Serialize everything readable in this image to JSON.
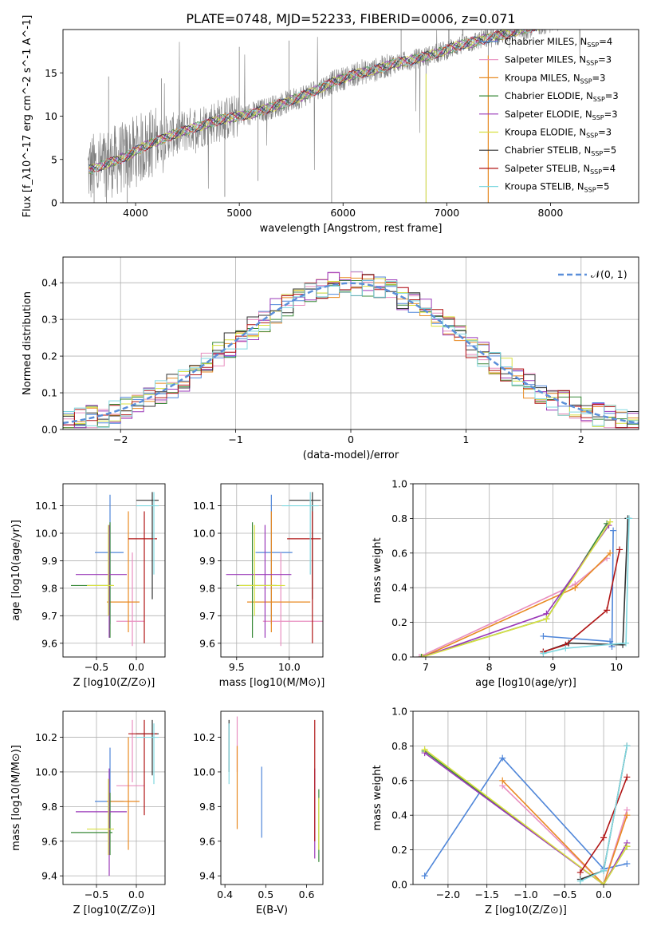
{
  "figure_title": "PLATE=0748, MJD=52233, FIBERID=0006, z=0.071",
  "colors": {
    "Chabrier MILES": "#4f86d9",
    "Salpeter MILES": "#e88fc0",
    "Kroupa MILES": "#e88a22",
    "Chabrier ELODIE": "#3a8a3a",
    "Salpeter ELODIE": "#9a38b8",
    "Kroupa ELODIE": "#d8e040",
    "Chabrier STELIB": "#333333",
    "Salpeter STELIB": "#b01515",
    "Kroupa STELIB": "#80d8e0",
    "data": "#808080",
    "gaussian": "#5b8fd9"
  },
  "chart_data": [
    {
      "id": "spectrum",
      "type": "line",
      "xlabel": "wavelength [Angstrom, rest frame]",
      "ylabel": "Flux [f_λ10^-17 erg cm^-2 s^-1 A^-1]",
      "xlim": [
        3300,
        8850
      ],
      "ylim": [
        0,
        20
      ],
      "xticks": [
        4000,
        5000,
        6000,
        7000,
        8000
      ],
      "yticks": [
        0,
        5,
        10,
        15
      ],
      "legend": "right",
      "legend_entries": [
        {
          "model": "Chabrier MILES",
          "nssp": "4"
        },
        {
          "model": "Salpeter MILES",
          "nssp": "3"
        },
        {
          "model": "Kroupa MILES",
          "nssp": "3"
        },
        {
          "model": "Chabrier ELODIE",
          "nssp": "3"
        },
        {
          "model": "Salpeter ELODIE",
          "nssp": "3"
        },
        {
          "model": "Kroupa ELODIE",
          "nssp": "3"
        },
        {
          "model": "Chabrier STELIB",
          "nssp": "5"
        },
        {
          "model": "Salpeter STELIB",
          "nssp": "4"
        },
        {
          "model": "Kroupa STELIB",
          "nssp": "5"
        }
      ],
      "continuum": {
        "x": [
          3550,
          3700,
          3900,
          4100,
          4300,
          4500,
          4700,
          4900,
          5100,
          5300,
          5500,
          5700,
          5900,
          6100,
          6300,
          6500,
          6700,
          6900,
          7100,
          7300,
          7500
        ],
        "y": [
          3.8,
          4.4,
          5.3,
          6.6,
          7.6,
          8.4,
          9.2,
          9.8,
          10.2,
          11.0,
          11.8,
          12.8,
          13.9,
          14.8,
          15.3,
          16.1,
          16.6,
          17.2,
          18.1,
          18.7,
          19.3
        ]
      }
    },
    {
      "id": "residuals",
      "type": "step",
      "xlabel": "(data-model)/error",
      "ylabel": "Normed distribution",
      "xlim": [
        -2.5,
        2.5
      ],
      "ylim": [
        0,
        0.47
      ],
      "xticks": [
        -2,
        -1,
        0,
        1,
        2
      ],
      "yticks": [
        0.0,
        0.1,
        0.2,
        0.3,
        0.4
      ],
      "legend_label": "𝒩(0, 1)",
      "legend": "top-right",
      "bin_width": 0.1,
      "bins_start": -2.5,
      "reference_curve": "standard normal"
    },
    {
      "id": "age-vs-Z",
      "type": "errorbar",
      "xlabel": "Z [log10(Z/Z⊙)]",
      "ylabel": "age  [log10(age/yr)]",
      "xlim": [
        -0.92,
        0.36
      ],
      "ylim": [
        9.55,
        10.18
      ],
      "xticks": [
        -0.5,
        0.0
      ],
      "yticks": [
        9.6,
        9.7,
        9.8,
        9.9,
        10.0,
        10.1
      ]
    },
    {
      "id": "age-vs-mass",
      "type": "errorbar",
      "xlabel": "mass [log10(M/M⊙)]",
      "ylabel": "",
      "xlim": [
        9.35,
        10.32
      ],
      "ylim": [
        9.55,
        10.18
      ],
      "xticks": [
        9.5,
        10.0
      ],
      "yticks": [
        9.6,
        9.7,
        9.8,
        9.9,
        10.0,
        10.1
      ]
    },
    {
      "id": "mass-weight-vs-age",
      "type": "line",
      "xlabel": "age  [log10(age/yr)]",
      "ylabel": "mass weight",
      "xlim": [
        6.8,
        10.35
      ],
      "ylim": [
        0,
        1
      ],
      "xticks": [
        7,
        8,
        9,
        10
      ],
      "yticks": [
        0.0,
        0.2,
        0.4,
        0.6,
        0.8,
        1.0
      ]
    },
    {
      "id": "mass-vs-Z",
      "type": "errorbar",
      "xlabel": "Z [log10(Z/Z⊙)]",
      "ylabel": "mass [log10(M/M⊙)]",
      "xlim": [
        -0.92,
        0.36
      ],
      "ylim": [
        9.35,
        10.35
      ],
      "xticks": [
        -0.5,
        0.0
      ],
      "yticks": [
        9.4,
        9.6,
        9.8,
        10.0,
        10.2
      ]
    },
    {
      "id": "mass-vs-ebv",
      "type": "errorbar",
      "xlabel": "E(B-V)",
      "ylabel": "",
      "xlim": [
        0.39,
        0.64
      ],
      "ylim": [
        9.35,
        10.35
      ],
      "xticks": [
        0.4,
        0.5,
        0.6
      ],
      "yticks": [
        9.4,
        9.6,
        9.8,
        10.0,
        10.2
      ]
    },
    {
      "id": "mass-weight-vs-Z",
      "type": "line",
      "xlabel": "Z [log10(Z/Z⊙)]",
      "ylabel": "mass weight",
      "xlim": [
        -2.45,
        0.45
      ],
      "ylim": [
        0,
        1
      ],
      "xticks": [
        -2.0,
        -1.5,
        -1.0,
        -0.5,
        0.0
      ],
      "yticks": [
        0.0,
        0.2,
        0.4,
        0.6,
        0.8,
        1.0
      ]
    }
  ],
  "models": [
    {
      "name": "Chabrier MILES",
      "Z": -0.33,
      "Zlo": -0.52,
      "Zhi": -0.16,
      "age": 9.93,
      "age_lo": 9.67,
      "age_hi": 10.14,
      "mass": 9.83,
      "mass_lo": 9.68,
      "mass_hi": 10.03,
      "mlo": 9.75,
      "mhi": 10.14,
      "ebv": 0.49,
      "ebv_lo": 9.62,
      "ebv_hi": 10.03,
      "ages": [
        8.85,
        9.9,
        9.93,
        9.95
      ],
      "w_age": [
        0.12,
        0.09,
        0.06,
        0.73
      ],
      "Zs": [
        -2.3,
        -1.3,
        0.0,
        0.3
      ],
      "w_Z": [
        0.05,
        0.73,
        0.09,
        0.12
      ]
    },
    {
      "name": "Salpeter MILES",
      "Z": -0.05,
      "Zlo": -0.25,
      "Zhi": 0.1,
      "age": 9.68,
      "age_lo": 9.59,
      "age_hi": 9.93,
      "mass": 9.92,
      "mass_lo": 9.75,
      "mass_hi": 10.32,
      "mlo": 9.94,
      "mhi": 10.3,
      "ebv": 0.43,
      "ebv_lo": 10.0,
      "ebv_hi": 10.32,
      "ages": [
        6.9,
        9.35,
        9.85
      ],
      "w_age": [
        0.0,
        0.42,
        0.57
      ],
      "Zs": [
        -1.3,
        0.0,
        0.3
      ],
      "w_Z": [
        0.57,
        0.0,
        0.43
      ]
    },
    {
      "name": "Kroupa MILES",
      "Z": -0.1,
      "Zlo": -0.37,
      "Zhi": 0.04,
      "age": 9.75,
      "age_lo": 9.64,
      "age_hi": 10.08,
      "mass": 9.83,
      "mass_lo": 9.6,
      "mass_hi": 10.2,
      "mlo": 9.55,
      "mhi": 10.2,
      "ebv": 0.43,
      "ebv_lo": 9.67,
      "ebv_hi": 10.15,
      "ages": [
        6.95,
        9.35,
        9.9
      ],
      "w_age": [
        0.0,
        0.4,
        0.6
      ],
      "Zs": [
        -1.3,
        0.0,
        0.3
      ],
      "w_Z": [
        0.6,
        0.0,
        0.4
      ]
    },
    {
      "name": "Chabrier ELODIE",
      "Z": -0.33,
      "Zlo": -0.82,
      "Zhi": -0.3,
      "age": 9.81,
      "age_lo": 9.62,
      "age_hi": 10.04,
      "mass": 9.65,
      "mass_lo": 9.5,
      "mass_hi": 9.88,
      "mlo": 9.52,
      "mhi": 9.88,
      "ebv": 0.63,
      "ebv_lo": 9.48,
      "ebv_hi": 9.9,
      "ages": [
        6.93,
        8.9,
        9.85
      ],
      "w_age": [
        0.0,
        0.22,
        0.77
      ],
      "Zs": [
        -2.3,
        0.0,
        0.3
      ],
      "w_Z": [
        0.77,
        0.0,
        0.22
      ]
    },
    {
      "name": "Salpeter ELODIE",
      "Z": -0.34,
      "Zlo": -0.76,
      "Zhi": -0.12,
      "age": 9.85,
      "age_lo": 9.62,
      "age_hi": 10.03,
      "mass": 9.77,
      "mass_lo": 9.4,
      "mass_hi": 10.02,
      "mlo": 9.4,
      "mhi": 10.02,
      "ebv": 0.62,
      "ebv_lo": 9.5,
      "ebv_hi": 10.02,
      "ages": [
        6.95,
        8.9,
        9.88
      ],
      "w_age": [
        0.0,
        0.25,
        0.76
      ],
      "Zs": [
        -2.3,
        0.0,
        0.3
      ],
      "w_Z": [
        0.76,
        0.0,
        0.24
      ]
    },
    {
      "name": "Kroupa ELODIE",
      "Z": -0.35,
      "Zlo": -0.62,
      "Zhi": -0.28,
      "age": 9.81,
      "age_lo": 9.7,
      "age_hi": 10.03,
      "mass": 9.67,
      "mass_lo": 9.52,
      "mass_hi": 9.96,
      "mlo": 9.52,
      "mhi": 9.96,
      "ebv": 0.63,
      "ebv_lo": 9.55,
      "ebv_hi": 9.85,
      "ages": [
        6.95,
        8.9,
        9.9
      ],
      "w_age": [
        0.0,
        0.22,
        0.78
      ],
      "Zs": [
        -2.3,
        0.0,
        0.3
      ],
      "w_Z": [
        0.78,
        0.0,
        0.22
      ]
    },
    {
      "name": "Chabrier STELIB",
      "Z": 0.2,
      "Zlo": 0.0,
      "Zhi": 0.28,
      "age": 10.12,
      "age_lo": 9.76,
      "age_hi": 10.15,
      "mass": 10.22,
      "mass_lo": 10.0,
      "mass_hi": 10.3,
      "mlo": 9.98,
      "mhi": 10.3,
      "ebv": 0.41,
      "ebv_lo": 10.0,
      "ebv_hi": 10.3,
      "ages": [
        8.85,
        9.25,
        10.1,
        10.18
      ],
      "w_age": [
        0.03,
        0.08,
        0.07,
        0.8
      ],
      "Zs": [
        -0.3,
        0.0,
        0.3
      ],
      "w_Z": [
        0.03,
        0.08,
        0.8
      ]
    },
    {
      "name": "Salpeter STELIB",
      "Z": 0.1,
      "Zlo": -0.1,
      "Zhi": 0.26,
      "age": 9.98,
      "age_lo": 9.6,
      "age_hi": 10.08,
      "mass": 10.22,
      "mass_lo": 9.98,
      "mass_hi": 10.3,
      "mlo": 9.75,
      "mhi": 10.3,
      "ebv": 0.62,
      "ebv_lo": 9.6,
      "ebv_hi": 10.3,
      "ages": [
        8.85,
        9.2,
        9.85,
        10.05
      ],
      "w_age": [
        0.03,
        0.07,
        0.27,
        0.62
      ],
      "Zs": [
        -0.3,
        0.0,
        0.3
      ],
      "w_Z": [
        0.07,
        0.27,
        0.62
      ]
    },
    {
      "name": "Kroupa STELIB",
      "Z": 0.22,
      "Zlo": 0.0,
      "Zhi": 0.28,
      "age": 10.1,
      "age_lo": 9.85,
      "age_hi": 10.15,
      "mass": 10.2,
      "mass_lo": 9.93,
      "mass_hi": 10.28,
      "mlo": 9.93,
      "mhi": 10.28,
      "ebv": 0.41,
      "ebv_lo": 9.93,
      "ebv_hi": 10.28,
      "ages": [
        8.85,
        9.2,
        10.15,
        10.2
      ],
      "w_age": [
        0.02,
        0.05,
        0.08,
        0.8
      ],
      "Zs": [
        -0.3,
        0.0,
        0.3
      ],
      "w_Z": [
        0.02,
        0.08,
        0.8
      ]
    }
  ]
}
